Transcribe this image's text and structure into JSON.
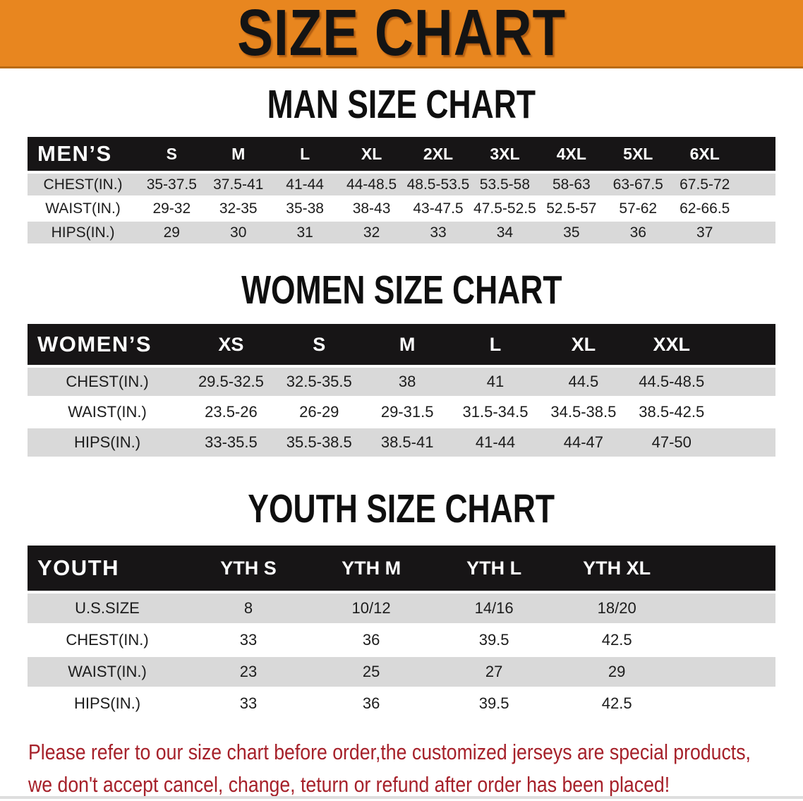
{
  "banner": {
    "title": "SIZE CHART"
  },
  "colors": {
    "banner_orange": "#E8861F",
    "table_header_black": "#171516",
    "row_gray": "#D9D9D9",
    "note_red": "#A6212A"
  },
  "men": {
    "section_title": "MAN SIZE CHART",
    "corner_label": "MEN’S",
    "sizes": [
      "S",
      "M",
      "L",
      "XL",
      "2XL",
      "3XL",
      "4XL",
      "5XL",
      "6XL"
    ],
    "rows": [
      {
        "label": "CHEST(IN.)",
        "values": [
          "35-37.5",
          "37.5-41",
          "41-44",
          "44-48.5",
          "48.5-53.5",
          "53.5-58",
          "58-63",
          "63-67.5",
          "67.5-72"
        ]
      },
      {
        "label": "WAIST(IN.)",
        "values": [
          "29-32",
          "32-35",
          "35-38",
          "38-43",
          "43-47.5",
          "47.5-52.5",
          "52.5-57",
          "57-62",
          "62-66.5"
        ]
      },
      {
        "label": "HIPS(IN.)",
        "values": [
          "29",
          "30",
          "31",
          "32",
          "33",
          "34",
          "35",
          "36",
          "37"
        ]
      }
    ]
  },
  "women": {
    "section_title": "WOMEN SIZE CHART",
    "corner_label": "WOMEN’S",
    "sizes": [
      "XS",
      "S",
      "M",
      "L",
      "XL",
      "XXL"
    ],
    "rows": [
      {
        "label": "CHEST(IN.)",
        "values": [
          "29.5-32.5",
          "32.5-35.5",
          "38",
          "41",
          "44.5",
          "44.5-48.5"
        ]
      },
      {
        "label": "WAIST(IN.)",
        "values": [
          "23.5-26",
          "26-29",
          "29-31.5",
          "31.5-34.5",
          "34.5-38.5",
          "38.5-42.5"
        ]
      },
      {
        "label": "HIPS(IN.)",
        "values": [
          "33-35.5",
          "35.5-38.5",
          "38.5-41",
          "41-44",
          "44-47",
          "47-50"
        ]
      }
    ]
  },
  "youth": {
    "section_title": "YOUTH SIZE CHART",
    "corner_label": "YOUTH",
    "sizes": [
      "YTH S",
      "YTH M",
      "YTH L",
      "YTH XL"
    ],
    "rows": [
      {
        "label": "U.S.SIZE",
        "values": [
          "8",
          "10/12",
          "14/16",
          "18/20"
        ]
      },
      {
        "label": "CHEST(IN.)",
        "values": [
          "33",
          "36",
          "39.5",
          "42.5"
        ]
      },
      {
        "label": "WAIST(IN.)",
        "values": [
          "23",
          "25",
          "27",
          "29"
        ]
      },
      {
        "label": "HIPS(IN.)",
        "values": [
          "33",
          "36",
          "39.5",
          "42.5"
        ]
      }
    ]
  },
  "note": {
    "line1": "Please refer to our size chart before order,the customized jerseys are special products,",
    "line2": "we don't accept cancel, change, teturn or refund after order has been placed!"
  }
}
